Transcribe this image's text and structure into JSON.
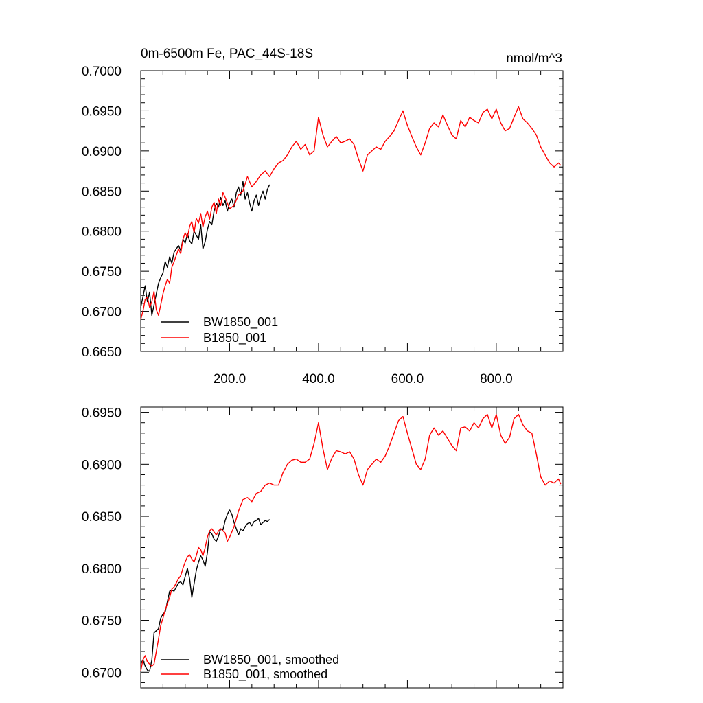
{
  "colors": {
    "bw": "#000000",
    "b": "#ff0000"
  },
  "chart_data": [
    {
      "type": "line",
      "title": "0m-6500m Fe, PAC_44S-18S",
      "units": "nmol/m^3",
      "xlim": [
        0,
        950
      ],
      "ylim": [
        0.665,
        0.7
      ],
      "x_ticks": [
        200,
        400,
        600,
        800
      ],
      "x_tick_labels": [
        "200.0",
        "400.0",
        "600.0",
        "800.0"
      ],
      "y_ticks": [
        0.665,
        0.67,
        0.675,
        0.68,
        0.685,
        0.69,
        0.695,
        0.7
      ],
      "y_tick_labels": [
        "0.6650",
        "0.6700",
        "0.6750",
        "0.6800",
        "0.6850",
        "0.6900",
        "0.6950",
        "0.7000"
      ],
      "legend": "bottom-left",
      "series": [
        {
          "name": "BW1850_001",
          "color": "#000000",
          "x": [
            0,
            5,
            10,
            15,
            20,
            25,
            30,
            35,
            40,
            45,
            50,
            55,
            60,
            65,
            70,
            75,
            80,
            85,
            90,
            95,
            100,
            105,
            110,
            115,
            120,
            125,
            130,
            135,
            140,
            145,
            150,
            155,
            160,
            165,
            170,
            175,
            180,
            185,
            190,
            195,
            200,
            205,
            210,
            215,
            220,
            225,
            230,
            235,
            240,
            245,
            250,
            255,
            260,
            265,
            270,
            275,
            280,
            285,
            290
          ],
          "values": [
            0.6705,
            0.6718,
            0.6732,
            0.6712,
            0.6724,
            0.6695,
            0.6708,
            0.6722,
            0.6735,
            0.6742,
            0.6748,
            0.6762,
            0.6755,
            0.6768,
            0.676,
            0.6774,
            0.6778,
            0.6782,
            0.6776,
            0.679,
            0.6785,
            0.6797,
            0.6788,
            0.6784,
            0.68,
            0.6795,
            0.679,
            0.6808,
            0.6778,
            0.6787,
            0.6802,
            0.6812,
            0.6808,
            0.6825,
            0.6835,
            0.683,
            0.6842,
            0.6832,
            0.6838,
            0.6825,
            0.6835,
            0.684,
            0.683,
            0.6848,
            0.6855,
            0.6845,
            0.6862,
            0.684,
            0.6848,
            0.6835,
            0.6825,
            0.6838,
            0.6845,
            0.6832,
            0.6842,
            0.685,
            0.684,
            0.6852,
            0.6858
          ]
        },
        {
          "name": "B1850_001",
          "color": "#ff0000",
          "x": [
            0,
            5,
            10,
            15,
            20,
            25,
            30,
            35,
            40,
            45,
            50,
            55,
            60,
            65,
            70,
            75,
            80,
            85,
            90,
            95,
            100,
            105,
            110,
            115,
            120,
            125,
            130,
            135,
            140,
            145,
            150,
            155,
            160,
            165,
            170,
            175,
            180,
            185,
            190,
            195,
            200,
            210,
            220,
            230,
            240,
            250,
            260,
            270,
            280,
            290,
            300,
            310,
            320,
            330,
            340,
            350,
            360,
            370,
            380,
            390,
            400,
            410,
            420,
            430,
            440,
            450,
            460,
            470,
            480,
            490,
            500,
            510,
            520,
            530,
            540,
            550,
            560,
            570,
            580,
            590,
            600,
            610,
            620,
            630,
            640,
            650,
            660,
            670,
            680,
            690,
            700,
            710,
            720,
            730,
            740,
            750,
            760,
            770,
            780,
            790,
            800,
            810,
            820,
            830,
            840,
            850,
            860,
            870,
            880,
            890,
            900,
            910,
            920,
            930,
            940,
            945
          ],
          "values": [
            0.669,
            0.67,
            0.6715,
            0.6718,
            0.6705,
            0.6712,
            0.6725,
            0.6702,
            0.6695,
            0.6708,
            0.6722,
            0.6732,
            0.674,
            0.6735,
            0.6755,
            0.6762,
            0.677,
            0.6778,
            0.6772,
            0.679,
            0.6798,
            0.6792,
            0.6806,
            0.6812,
            0.6798,
            0.6816,
            0.681,
            0.6822,
            0.6805,
            0.6818,
            0.6825,
            0.6815,
            0.683,
            0.6836,
            0.6822,
            0.684,
            0.6832,
            0.6848,
            0.6842,
            0.6835,
            0.6828,
            0.6832,
            0.6845,
            0.685,
            0.6868,
            0.6855,
            0.6862,
            0.687,
            0.6875,
            0.6868,
            0.6878,
            0.6885,
            0.6888,
            0.6895,
            0.6905,
            0.6912,
            0.6902,
            0.6908,
            0.6895,
            0.69,
            0.6942,
            0.692,
            0.6905,
            0.6912,
            0.6918,
            0.691,
            0.6912,
            0.6915,
            0.6908,
            0.689,
            0.6875,
            0.6895,
            0.69,
            0.6905,
            0.6902,
            0.6912,
            0.6918,
            0.6925,
            0.6938,
            0.695,
            0.6932,
            0.6918,
            0.6905,
            0.6895,
            0.691,
            0.6928,
            0.6935,
            0.693,
            0.6945,
            0.6932,
            0.692,
            0.6915,
            0.6938,
            0.693,
            0.6942,
            0.6938,
            0.6935,
            0.6948,
            0.6952,
            0.694,
            0.6952,
            0.6935,
            0.6925,
            0.6928,
            0.6942,
            0.6955,
            0.694,
            0.6935,
            0.6928,
            0.692,
            0.6905,
            0.6895,
            0.6885,
            0.688,
            0.6885,
            0.6882
          ]
        }
      ]
    },
    {
      "type": "line",
      "xlim": [
        0,
        950
      ],
      "ylim": [
        0.6685,
        0.6955
      ],
      "x_ticks": [
        200,
        400,
        600,
        800
      ],
      "y_ticks": [
        0.67,
        0.675,
        0.68,
        0.685,
        0.69,
        0.695
      ],
      "y_tick_labels": [
        "0.6700",
        "0.6750",
        "0.6800",
        "0.6850",
        "0.6900",
        "0.6950"
      ],
      "legend": "bottom-left",
      "series": [
        {
          "name": "BW1850_001, smoothed",
          "color": "#000000",
          "x": [
            0,
            5,
            10,
            15,
            20,
            25,
            30,
            35,
            40,
            45,
            50,
            55,
            60,
            65,
            70,
            75,
            80,
            85,
            90,
            95,
            100,
            105,
            110,
            115,
            120,
            125,
            130,
            135,
            140,
            145,
            150,
            155,
            160,
            165,
            170,
            175,
            180,
            185,
            190,
            195,
            200,
            205,
            210,
            215,
            220,
            225,
            230,
            235,
            240,
            245,
            250,
            255,
            260,
            265,
            270,
            275,
            280,
            285,
            290
          ],
          "values": [
            0.6708,
            0.6712,
            0.6706,
            0.6702,
            0.6701,
            0.6712,
            0.6738,
            0.674,
            0.6742,
            0.6752,
            0.6756,
            0.6758,
            0.6768,
            0.6778,
            0.6779,
            0.6778,
            0.6782,
            0.6786,
            0.6787,
            0.6784,
            0.6792,
            0.68,
            0.679,
            0.6772,
            0.6785,
            0.6798,
            0.6806,
            0.6812,
            0.6808,
            0.6802,
            0.6815,
            0.6835,
            0.6833,
            0.6828,
            0.6826,
            0.6831,
            0.6838,
            0.6837,
            0.6846,
            0.6852,
            0.6856,
            0.6852,
            0.6844,
            0.6838,
            0.6832,
            0.6838,
            0.6836,
            0.684,
            0.6843,
            0.6844,
            0.6841,
            0.6845,
            0.6846,
            0.6848,
            0.6842,
            0.6844,
            0.6846,
            0.6845,
            0.6847
          ]
        },
        {
          "name": "B1850_001, smoothed",
          "color": "#ff0000",
          "x": [
            0,
            5,
            10,
            15,
            20,
            25,
            30,
            35,
            40,
            45,
            50,
            55,
            60,
            65,
            70,
            75,
            80,
            85,
            90,
            95,
            100,
            105,
            110,
            115,
            120,
            125,
            130,
            135,
            140,
            145,
            150,
            155,
            160,
            165,
            170,
            175,
            180,
            185,
            190,
            195,
            200,
            210,
            220,
            230,
            240,
            250,
            260,
            270,
            280,
            290,
            300,
            310,
            320,
            330,
            340,
            350,
            360,
            370,
            380,
            390,
            400,
            410,
            420,
            430,
            440,
            450,
            460,
            470,
            480,
            490,
            500,
            510,
            520,
            530,
            540,
            550,
            560,
            570,
            580,
            590,
            600,
            610,
            620,
            630,
            640,
            650,
            660,
            670,
            680,
            690,
            700,
            710,
            720,
            730,
            740,
            750,
            760,
            770,
            780,
            790,
            800,
            810,
            820,
            830,
            840,
            850,
            860,
            870,
            880,
            890,
            900,
            910,
            920,
            930,
            940,
            945
          ],
          "values": [
            0.6701,
            0.6712,
            0.6716,
            0.671,
            0.6708,
            0.6706,
            0.6708,
            0.672,
            0.6732,
            0.6745,
            0.6752,
            0.676,
            0.6766,
            0.6772,
            0.678,
            0.6782,
            0.6786,
            0.679,
            0.6793,
            0.68,
            0.6806,
            0.6811,
            0.6813,
            0.6809,
            0.6806,
            0.6812,
            0.682,
            0.6818,
            0.6812,
            0.682,
            0.683,
            0.6836,
            0.6838,
            0.6835,
            0.6832,
            0.6836,
            0.6838,
            0.6836,
            0.6834,
            0.6826,
            0.683,
            0.684,
            0.6855,
            0.6866,
            0.6868,
            0.6864,
            0.6872,
            0.6874,
            0.688,
            0.6882,
            0.688,
            0.688,
            0.6892,
            0.69,
            0.6904,
            0.6905,
            0.6902,
            0.6902,
            0.6905,
            0.692,
            0.694,
            0.6915,
            0.6895,
            0.6906,
            0.6913,
            0.6912,
            0.691,
            0.6912,
            0.6905,
            0.689,
            0.688,
            0.6895,
            0.69,
            0.6905,
            0.6902,
            0.6908,
            0.6918,
            0.693,
            0.6942,
            0.6946,
            0.693,
            0.6915,
            0.69,
            0.6895,
            0.6905,
            0.6928,
            0.6935,
            0.6928,
            0.6932,
            0.6925,
            0.6918,
            0.6913,
            0.6935,
            0.6936,
            0.6932,
            0.694,
            0.6935,
            0.6944,
            0.6948,
            0.6935,
            0.6948,
            0.6928,
            0.692,
            0.6926,
            0.6944,
            0.6948,
            0.6938,
            0.6932,
            0.693,
            0.691,
            0.6888,
            0.688,
            0.6884,
            0.6882,
            0.6886,
            0.6881
          ]
        }
      ]
    }
  ]
}
